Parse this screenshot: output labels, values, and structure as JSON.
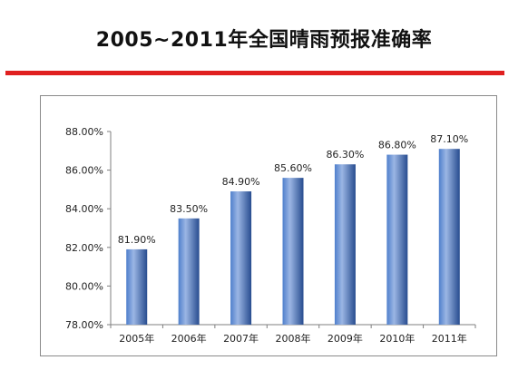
{
  "title": "2005~2011年全国晴雨预报准确率",
  "colors": {
    "rule": "#e02020",
    "bar_light": "#9bb6e4",
    "bar_mid": "#4f7fcc",
    "bar_dark": "#274c8f",
    "axis": "#7f7f7f"
  },
  "chart_data": {
    "type": "bar",
    "categories": [
      "2005年",
      "2006年",
      "2007年",
      "2008年",
      "2009年",
      "2010年",
      "2011年"
    ],
    "values": [
      81.9,
      83.5,
      84.9,
      85.6,
      86.3,
      86.8,
      87.1
    ],
    "data_labels": [
      "81.90%",
      "83.50%",
      "84.90%",
      "85.60%",
      "86.30%",
      "86.80%",
      "87.10%"
    ],
    "yticks": [
      "78.00%",
      "80.00%",
      "82.00%",
      "84.00%",
      "86.00%",
      "88.00%"
    ],
    "ytick_values": [
      78,
      80,
      82,
      84,
      86,
      88
    ],
    "ylim": [
      78,
      88
    ],
    "grid": false,
    "legend": "none"
  }
}
